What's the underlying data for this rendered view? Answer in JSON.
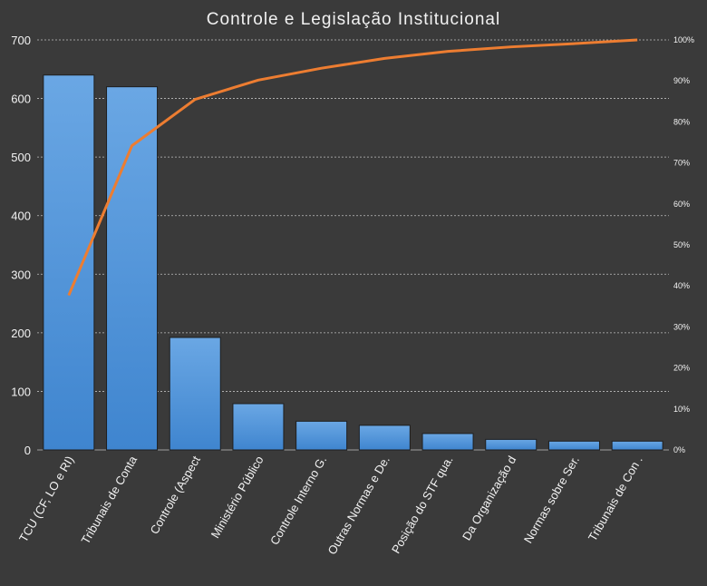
{
  "chart_data": {
    "type": "bar",
    "title": "Controle e Legislação Institucional",
    "xlabel": "",
    "ylabel": "",
    "ylim": [
      0,
      700
    ],
    "yticks": [
      0,
      100,
      200,
      300,
      400,
      500,
      600,
      700
    ],
    "y2lim": [
      0,
      100
    ],
    "y2ticks": [
      "0%",
      "10%",
      "20%",
      "30%",
      "40%",
      "50%",
      "60%",
      "70%",
      "80%",
      "90%",
      "100%"
    ],
    "grid": true,
    "legend": "none",
    "categories": [
      "TCU (CF, LO e RI)",
      "Tribunais de Conta",
      "Controle (Aspect",
      "Ministério Público",
      "Controle Interno G.",
      "Outras Normas e De.",
      "Posição do STF qua.",
      "Da Organização d",
      "Normas sobre Ser.",
      "Tribunais de Con ."
    ],
    "series": [
      {
        "type": "bar",
        "values": [
          640,
          620,
          192,
          79,
          49,
          42,
          28,
          18,
          15,
          15
        ]
      },
      {
        "type": "line",
        "axis": "secondary",
        "values": [
          37.7,
          74.2,
          85.5,
          90.2,
          93.1,
          95.5,
          97.2,
          98.3,
          99.1,
          100
        ]
      }
    ],
    "colors": {
      "bar": "#4a8fd6",
      "line": "#ed7d31",
      "background": "#3a3a3a",
      "grid": "#bfbfbf",
      "text": "#f2f2f2"
    }
  }
}
